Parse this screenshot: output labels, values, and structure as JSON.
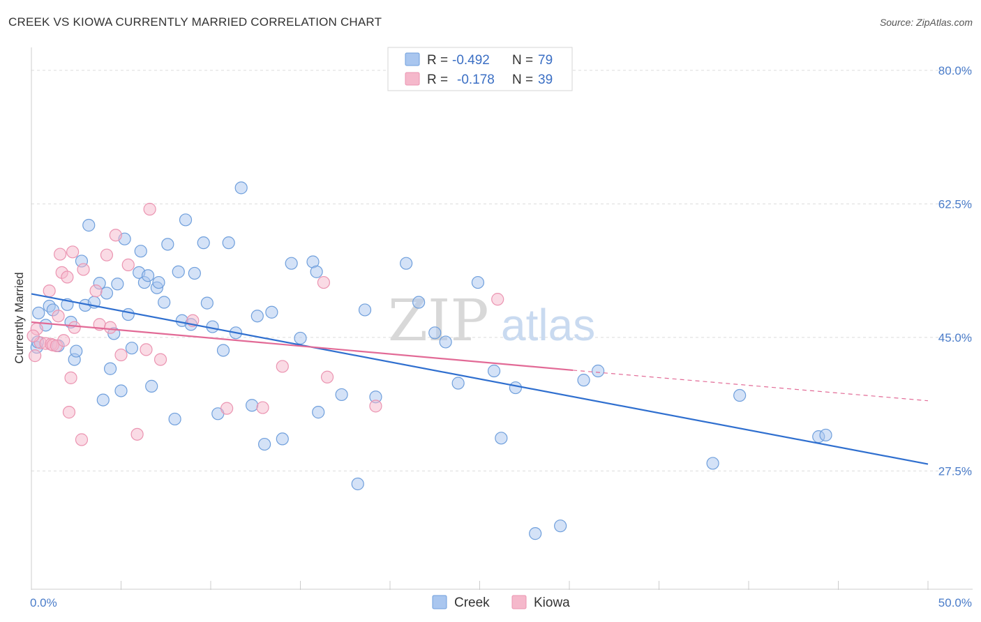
{
  "header": {
    "title": "CREEK VS KIOWA CURRENTLY MARRIED CORRELATION CHART",
    "source": "Source: ZipAtlas.com"
  },
  "watermark": {
    "zip": "ZIP",
    "atlas": "atlas"
  },
  "legend": {
    "rows": [
      {
        "r_label": "R =",
        "r_value": "-0.492",
        "n_label": "N =",
        "n_value": "79",
        "color": "#a9c6ef"
      },
      {
        "r_label": "R =",
        "r_value": "-0.178",
        "n_label": "N =",
        "n_value": "39",
        "color": "#f5b8cb"
      }
    ]
  },
  "bottom_legend": [
    {
      "label": "Creek",
      "color": "#a9c6ef"
    },
    {
      "label": "Kiowa",
      "color": "#f5b8cb"
    }
  ],
  "chart_data": {
    "type": "scatter",
    "ylabel": "Currently Married",
    "xlim": [
      0,
      50
    ],
    "ylim": [
      12,
      83
    ],
    "x_tick_labels": [
      "0.0%",
      "50.0%"
    ],
    "y_ticks": [
      27.5,
      45.0,
      62.5,
      80.0
    ],
    "y_tick_labels": [
      "27.5%",
      "45.0%",
      "62.5%",
      "80.0%"
    ],
    "grid": true,
    "legend_position": "top-center",
    "series": [
      {
        "name": "Creek",
        "color": "#a9c6ef",
        "stroke": "#6f9fdc",
        "trend": {
          "x": [
            0,
            50
          ],
          "y": [
            50.7,
            28.4
          ],
          "color": "#2f6fcf"
        },
        "points": [
          [
            0.3,
            43.7
          ],
          [
            0.35,
            44.4
          ],
          [
            0.4,
            48.2
          ],
          [
            0.8,
            46.6
          ],
          [
            1.0,
            49.1
          ],
          [
            1.2,
            48.6
          ],
          [
            1.5,
            43.9
          ],
          [
            2.0,
            49.3
          ],
          [
            2.2,
            47.0
          ],
          [
            2.4,
            42.1
          ],
          [
            2.5,
            43.2
          ],
          [
            2.8,
            55.0
          ],
          [
            3.0,
            49.2
          ],
          [
            3.2,
            59.7
          ],
          [
            3.5,
            49.6
          ],
          [
            3.8,
            52.1
          ],
          [
            4.0,
            36.8
          ],
          [
            4.2,
            50.8
          ],
          [
            4.4,
            40.9
          ],
          [
            4.6,
            45.5
          ],
          [
            4.8,
            52.0
          ],
          [
            5.0,
            38.0
          ],
          [
            5.2,
            57.9
          ],
          [
            5.4,
            48.0
          ],
          [
            5.6,
            43.6
          ],
          [
            6.0,
            53.5
          ],
          [
            6.1,
            56.3
          ],
          [
            6.3,
            52.2
          ],
          [
            6.5,
            53.1
          ],
          [
            6.7,
            38.6
          ],
          [
            7.0,
            51.5
          ],
          [
            7.1,
            52.2
          ],
          [
            7.4,
            49.6
          ],
          [
            7.6,
            57.2
          ],
          [
            8.0,
            34.3
          ],
          [
            8.2,
            53.6
          ],
          [
            8.4,
            47.2
          ],
          [
            8.6,
            60.4
          ],
          [
            8.9,
            46.7
          ],
          [
            9.1,
            53.4
          ],
          [
            9.6,
            57.4
          ],
          [
            9.8,
            49.5
          ],
          [
            10.1,
            46.4
          ],
          [
            10.4,
            35.0
          ],
          [
            10.7,
            43.3
          ],
          [
            11.0,
            57.4
          ],
          [
            11.4,
            45.6
          ],
          [
            11.7,
            64.6
          ],
          [
            12.3,
            36.1
          ],
          [
            12.6,
            47.8
          ],
          [
            13.0,
            31.0
          ],
          [
            13.4,
            48.3
          ],
          [
            14.0,
            31.7
          ],
          [
            14.5,
            54.7
          ],
          [
            15.0,
            44.9
          ],
          [
            15.7,
            54.9
          ],
          [
            15.9,
            53.6
          ],
          [
            16.0,
            35.2
          ],
          [
            17.3,
            37.5
          ],
          [
            18.2,
            25.8
          ],
          [
            18.6,
            48.6
          ],
          [
            19.2,
            37.2
          ],
          [
            20.9,
            54.7
          ],
          [
            21.6,
            49.6
          ],
          [
            22.5,
            45.6
          ],
          [
            23.1,
            44.4
          ],
          [
            23.8,
            39.0
          ],
          [
            24.9,
            52.2
          ],
          [
            25.8,
            40.6
          ],
          [
            26.2,
            31.8
          ],
          [
            27.0,
            38.4
          ],
          [
            28.1,
            19.3
          ],
          [
            29.5,
            20.3
          ],
          [
            30.8,
            39.4
          ],
          [
            31.6,
            40.6
          ],
          [
            38.0,
            28.5
          ],
          [
            39.5,
            37.4
          ],
          [
            43.9,
            32.0
          ],
          [
            44.3,
            32.2
          ]
        ]
      },
      {
        "name": "Kiowa",
        "color": "#f5b8cb",
        "stroke": "#eb94b1",
        "trend": {
          "x": [
            0,
            30.2
          ],
          "y": [
            47.0,
            40.7
          ],
          "dash_to_x": 50,
          "dash_to_y": 36.7,
          "color": "#e26a96"
        },
        "points": [
          [
            0.2,
            42.6
          ],
          [
            0.3,
            46.1
          ],
          [
            0.5,
            44.3
          ],
          [
            0.8,
            44.2
          ],
          [
            1.0,
            51.1
          ],
          [
            1.1,
            44.1
          ],
          [
            1.2,
            44.0
          ],
          [
            1.4,
            43.9
          ],
          [
            1.5,
            47.8
          ],
          [
            1.6,
            55.9
          ],
          [
            1.7,
            53.5
          ],
          [
            1.8,
            44.6
          ],
          [
            2.0,
            52.9
          ],
          [
            2.1,
            35.2
          ],
          [
            2.2,
            39.7
          ],
          [
            2.3,
            56.2
          ],
          [
            2.4,
            46.3
          ],
          [
            2.8,
            31.6
          ],
          [
            2.9,
            53.9
          ],
          [
            3.6,
            51.1
          ],
          [
            3.8,
            46.7
          ],
          [
            4.2,
            55.8
          ],
          [
            4.4,
            46.3
          ],
          [
            4.7,
            58.4
          ],
          [
            5.0,
            42.7
          ],
          [
            5.4,
            54.5
          ],
          [
            5.9,
            32.3
          ],
          [
            6.4,
            43.4
          ],
          [
            6.6,
            61.8
          ],
          [
            7.2,
            42.1
          ],
          [
            9.0,
            47.2
          ],
          [
            10.9,
            35.7
          ],
          [
            12.9,
            35.8
          ],
          [
            14.0,
            41.2
          ],
          [
            16.3,
            52.2
          ],
          [
            16.5,
            39.8
          ],
          [
            19.2,
            36.0
          ],
          [
            26.0,
            50.0
          ],
          [
            0.1,
            45.2
          ]
        ]
      }
    ]
  }
}
